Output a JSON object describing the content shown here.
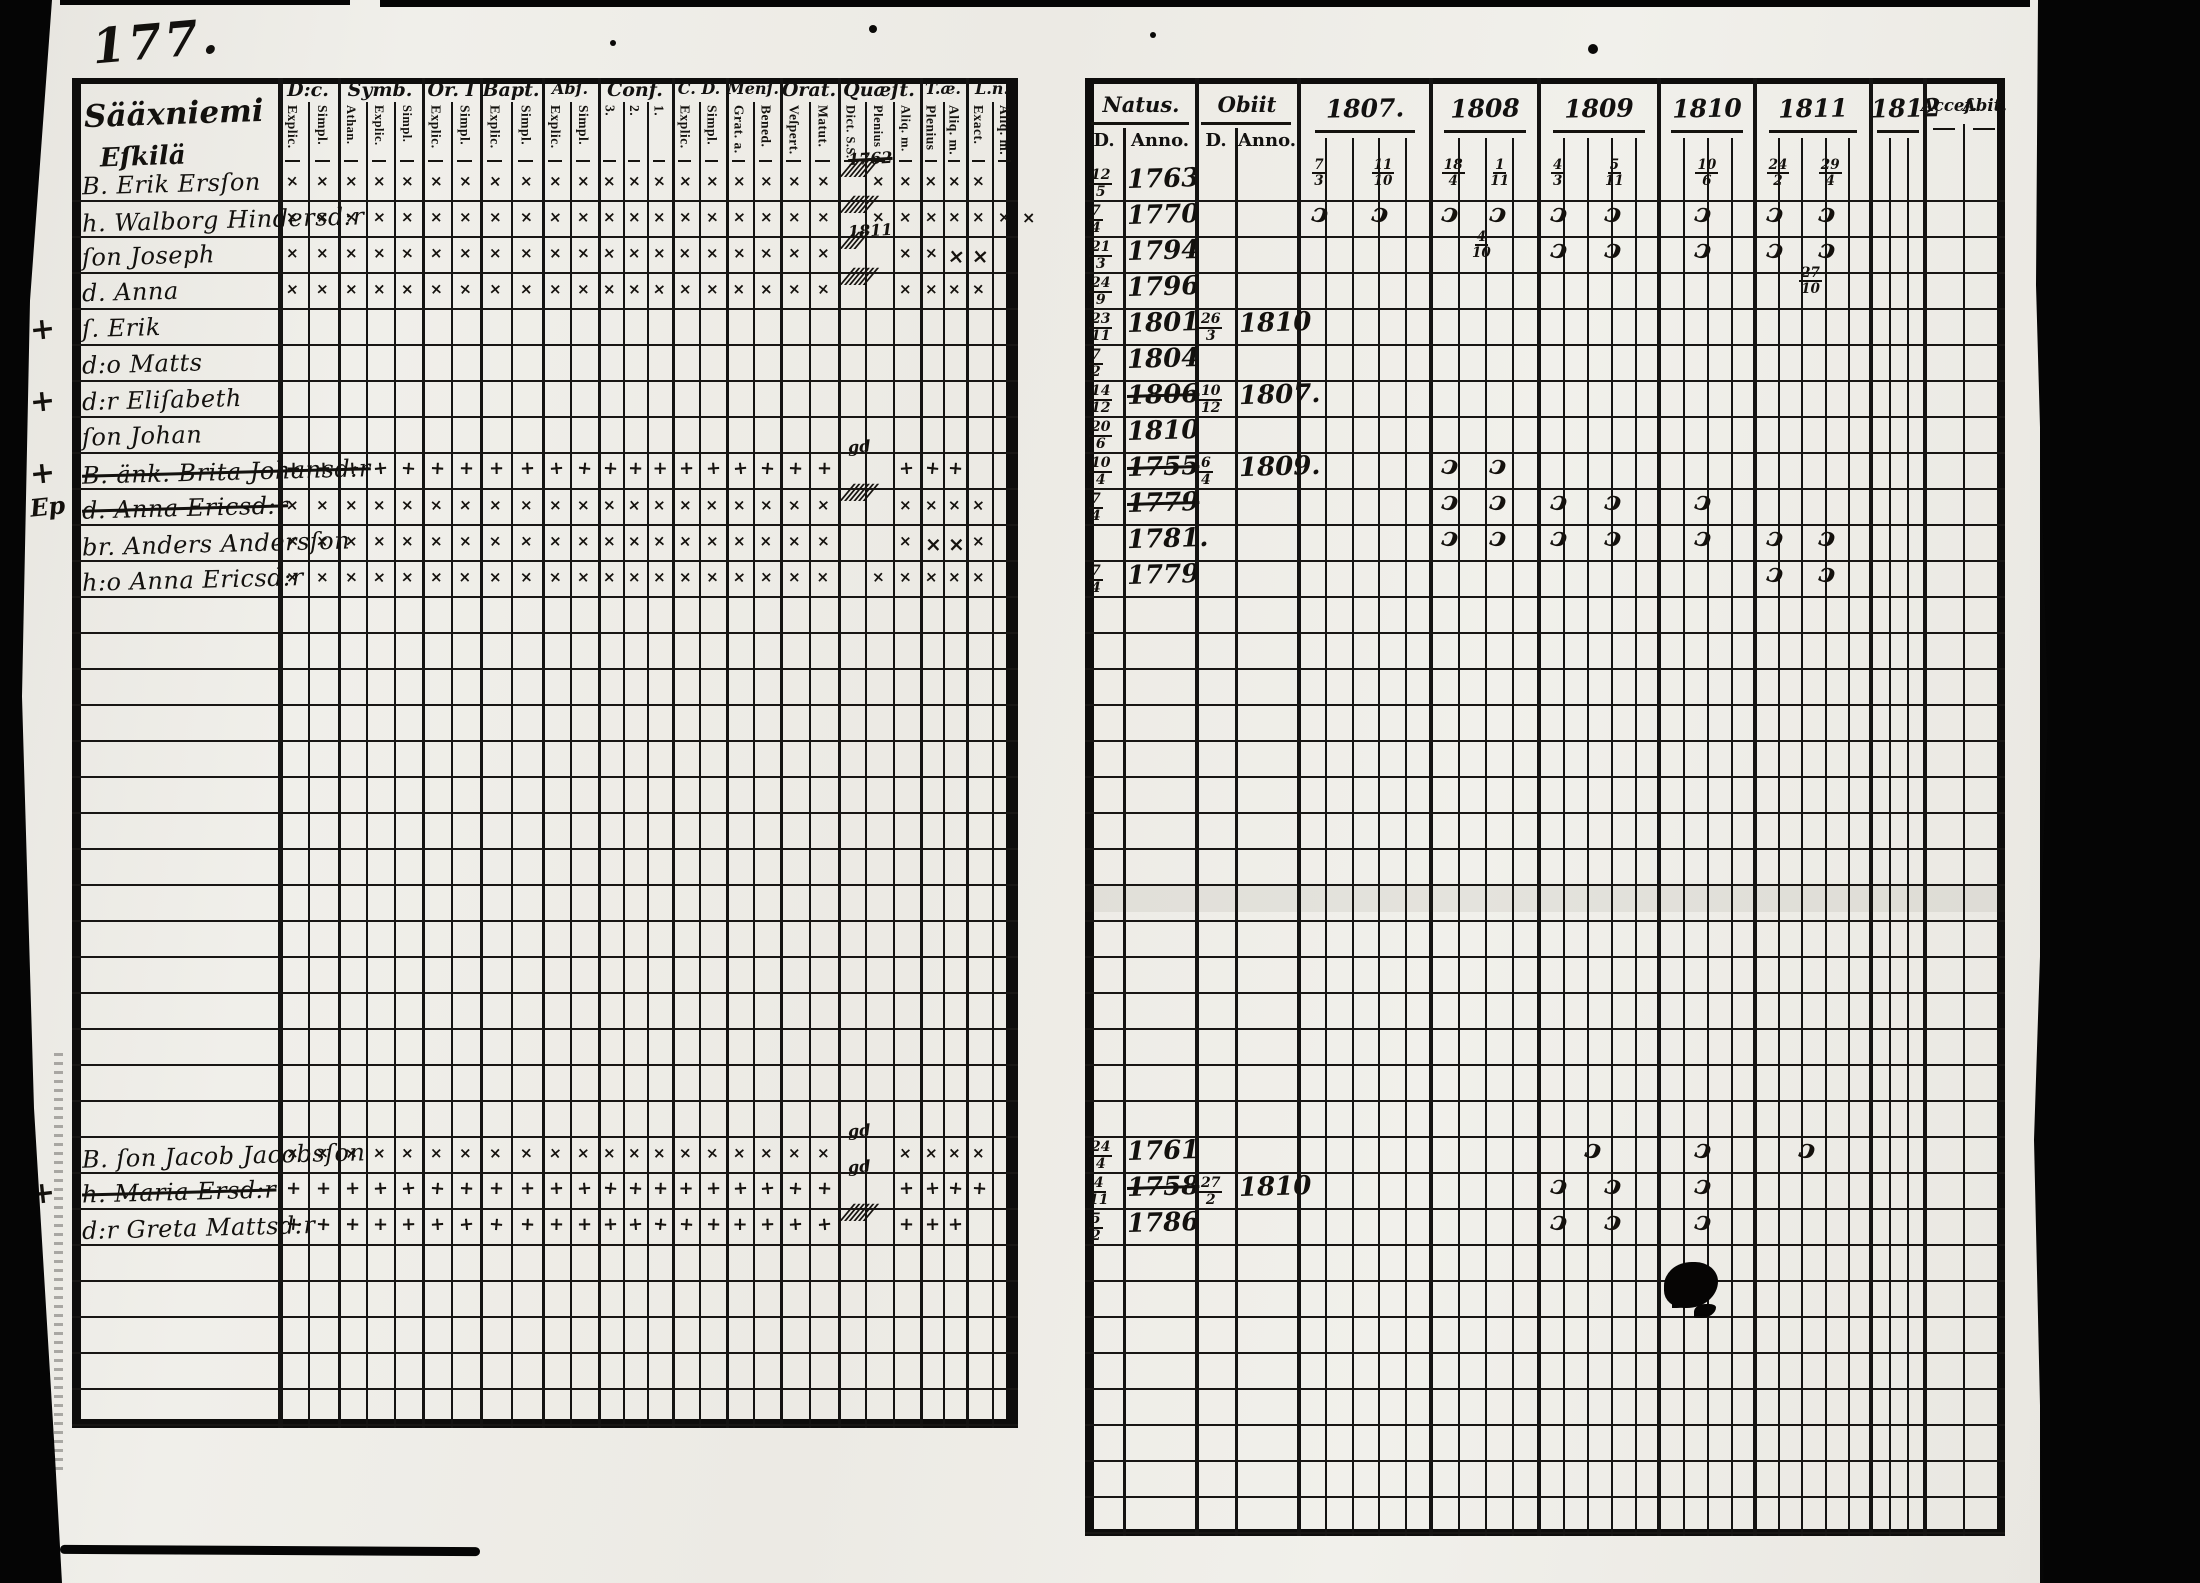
{
  "page": {
    "number": "177.",
    "place_line1": "Sääxniemi",
    "place_line2": "Eſkilä"
  },
  "left_table": {
    "columns": [
      {
        "label": "D:c.",
        "subs": [
          "Explic.",
          "Simpl."
        ]
      },
      {
        "label": "Symb.",
        "subs": [
          "Athan.",
          "Explic.",
          "Simpl."
        ]
      },
      {
        "label": "Or. I",
        "subs": [
          "Explic.",
          "Simpl."
        ]
      },
      {
        "label": "Bapt.",
        "subs": [
          "Explic.",
          "Simpl."
        ]
      },
      {
        "label": "Abſ.",
        "subs": [
          "Explic.",
          "Simpl."
        ]
      },
      {
        "label": "Conf.",
        "subs": [
          "3.",
          "2.",
          "1."
        ]
      },
      {
        "label": "C. D.",
        "subs": [
          "Explic.",
          "Simpl."
        ]
      },
      {
        "label": "Menſ.",
        "subs": [
          "Grat. a.",
          "Bened."
        ]
      },
      {
        "label": "Orat.",
        "subs": [
          "Veſpert.",
          "Matut."
        ]
      },
      {
        "label": "Quæſt.",
        "subs": [
          "Dict. S.S.",
          "Plenius",
          "Aliq. m."
        ]
      },
      {
        "label": "T.æ.",
        "subs": [
          "Plenius",
          "Aliq. m."
        ]
      },
      {
        "label": "L.n.",
        "subs": [
          "Exact.",
          "Aliq. m."
        ]
      }
    ]
  },
  "right_table": {
    "natus_label": "Natus.",
    "obiit_label": "Obiit",
    "d_label": "D.",
    "anno_label": "Anno.",
    "years": [
      "1807.",
      "1808",
      "1809",
      "1810",
      "1811",
      "1812"
    ],
    "acces_label": "Acceſ.",
    "abit_label": "Abit."
  },
  "rows": [
    {
      "name": "B. Erik Ersſon",
      "marks": "xxxxxxxxxxxxxxxxxxxx.xxxxx.",
      "q_tally": "//////",
      "q_note": "1762",
      "q_note_struck": true,
      "natus": {
        "d": "12/5",
        "anno": "1763"
      },
      "ym": [
        [
          "7/3",
          "11/10"
        ],
        [
          "18/4",
          "1/11"
        ],
        [
          "4/3",
          "5/11"
        ],
        [
          "10/6"
        ],
        [
          "24/2",
          "29/4"
        ],
        []
      ]
    },
    {
      "name": "h. Walborg Hindersd:r",
      "marks": "xxxxxxxxxxxxxxxxxxxx.xxxxxx",
      "q_tally": "//////",
      "after": "x",
      "natus": {
        "d": "7/4",
        "anno": "1770"
      },
      "ym": [
        [
          "ɔ",
          "ɔ"
        ],
        [
          "ɔ",
          "ɔ"
        ],
        [
          "ɔ",
          "ɔ"
        ],
        [
          "ɔ"
        ],
        [
          "ɔ",
          "ɔ"
        ],
        []
      ]
    },
    {
      "name": "ſon Joseph",
      "marks": "xxxxxxxxxxxxxxxxxxxx..xxXX.",
      "q_tally": "////",
      "q_note": "1811",
      "natus": {
        "d": "21/3",
        "anno": "1794"
      },
      "ym": [
        [],
        [
          "4/10"
        ],
        [
          "ɔ",
          "ɔ"
        ],
        [
          "ɔ"
        ],
        [
          "ɔ",
          "ɔ"
        ],
        []
      ]
    },
    {
      "name": "d. Anna",
      "marks": "xxxxxxxxxxxxxxxxxxxx..xxxx.",
      "q_tally": "//////",
      "natus": {
        "d": "24/9",
        "anno": "1796"
      },
      "ym": [
        [],
        [],
        [],
        [],
        [
          "27/10"
        ],
        []
      ]
    },
    {
      "name": "ſ. Erik",
      "margin": "+",
      "natus": {
        "d": "23/11",
        "anno": "1801"
      },
      "obiit": {
        "d": "26/3",
        "anno": "1810"
      }
    },
    {
      "name": "d:o Matts",
      "natus": {
        "d": "7/2",
        "anno": "1804"
      }
    },
    {
      "name": "d:r Eliſabeth",
      "margin": "+",
      "natus": {
        "d": "14/12",
        "anno": "1806",
        "struck": true
      },
      "obiit": {
        "d": "10/12",
        "anno": "1807."
      }
    },
    {
      "name": "ſon Johan",
      "natus": {
        "d": "20/6",
        "anno": "1810"
      }
    },
    {
      "name": "B. änk. Brita Johansd:r",
      "struck": true,
      "margin": "+",
      "marks": "++++++++++++++++++++..+++..",
      "q_note": "gd",
      "natus": {
        "d": "10/4",
        "anno": "1755",
        "struck": true
      },
      "obiit": {
        "d": "6/4",
        "anno": "1809."
      },
      "ym": [
        [],
        [
          "ɔ",
          "ɔ"
        ],
        [],
        [],
        [],
        []
      ]
    },
    {
      "name": "d. Anna Ericsd:r",
      "struck": true,
      "margin": "Ep",
      "marks": "xxxxxxxxxxxxxxxxxxxx..xxxx.",
      "q_tally": "//////",
      "natus": {
        "d": "7/4",
        "anno": "1779",
        "struck": true
      },
      "ym": [
        [],
        [
          "ɔ",
          "ɔ"
        ],
        [
          "ɔ",
          "ɔ"
        ],
        [
          "ɔ"
        ],
        [],
        []
      ]
    },
    {
      "name": "br. Anders Andersſon",
      "marks": "xxxxxxxxxxxxxxxxxxxx..xXXx.",
      "natus": {
        "anno": "1781."
      },
      "ym": [
        [],
        [
          "ɔ",
          "ɔ"
        ],
        [
          "ɔ",
          "ɔ"
        ],
        [
          "ɔ"
        ],
        [
          "ɔ",
          "ɔ"
        ],
        []
      ]
    },
    {
      "name": "h:o Anna Ericsd:r",
      "marks": "xxxxxxxxxxxxxxxxxxxx.xxxxx.",
      "natus": {
        "d": "7/4",
        "anno": "1779"
      },
      "ym": [
        [],
        [],
        [],
        [],
        [
          "ɔ",
          "ɔ"
        ],
        []
      ]
    },
    {},
    {},
    {},
    {},
    {},
    {},
    {},
    {},
    {},
    {},
    {},
    {},
    {},
    {},
    {},
    {
      "name": "B. ſon Jacob Jacobsſon",
      "marks": "xxxxxxxxxxxxxxxxxxxx..xxxx.",
      "q_note": "gd",
      "natus": {
        "d": "24/4",
        "anno": "1761"
      },
      "ym": [
        [],
        [],
        [
          "ɔ"
        ],
        [
          "ɔ"
        ],
        [
          "ɔ"
        ],
        []
      ]
    },
    {
      "name": "h. Maria Ersd:r",
      "struck": true,
      "margin": "+",
      "marks": "++++++++++++++++++++..++++.",
      "q_note": "gd",
      "natus": {
        "d": "4/11",
        "anno": "1758",
        "struck": true
      },
      "obiit": {
        "d": "27/2",
        "anno": "1810"
      },
      "ym": [
        [],
        [],
        [
          "ɔ",
          "ɔ"
        ],
        [
          "ɔ"
        ],
        [],
        []
      ]
    },
    {
      "name": "d:r Greta Mattsd:r",
      "marks": "++++++++++++++++++++..+++..",
      "q_tally": "//////",
      "natus": {
        "d": "5/2",
        "anno": "1786"
      },
      "ym": [
        [],
        [],
        [
          "ɔ",
          "ɔ"
        ],
        [
          "ɔ"
        ],
        [],
        []
      ]
    },
    {},
    {},
    {},
    {},
    {}
  ]
}
